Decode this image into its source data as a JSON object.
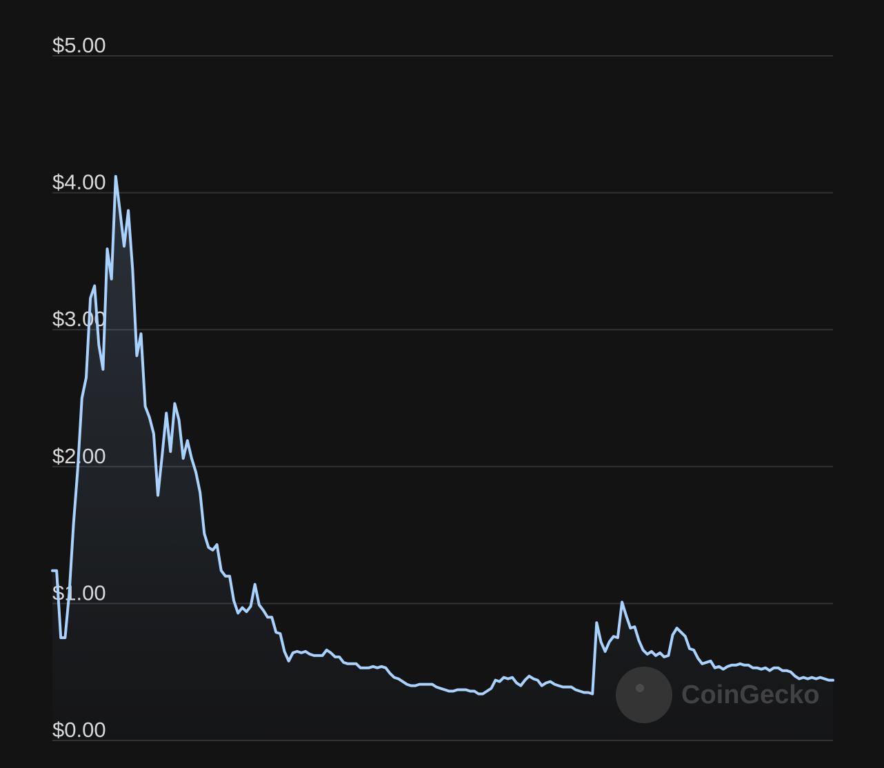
{
  "chart_data": {
    "type": "line",
    "values": [
      1.24,
      1.24,
      0.75,
      0.75,
      1.08,
      1.58,
      1.98,
      2.5,
      2.65,
      3.23,
      3.32,
      2.89,
      2.71,
      3.59,
      3.37,
      4.12,
      3.87,
      3.61,
      3.87,
      3.44,
      2.81,
      2.97,
      2.44,
      2.36,
      2.24,
      1.79,
      2.08,
      2.39,
      2.11,
      2.46,
      2.34,
      2.06,
      2.19,
      2.06,
      1.96,
      1.81,
      1.51,
      1.41,
      1.39,
      1.43,
      1.24,
      1.2,
      1.2,
      1.02,
      0.93,
      0.97,
      0.94,
      0.98,
      1.14,
      0.99,
      0.95,
      0.9,
      0.9,
      0.79,
      0.78,
      0.65,
      0.58,
      0.64,
      0.65,
      0.64,
      0.65,
      0.63,
      0.62,
      0.62,
      0.62,
      0.66,
      0.64,
      0.61,
      0.61,
      0.57,
      0.56,
      0.56,
      0.56,
      0.53,
      0.53,
      0.53,
      0.54,
      0.53,
      0.54,
      0.53,
      0.49,
      0.46,
      0.45,
      0.43,
      0.41,
      0.4,
      0.4,
      0.41,
      0.41,
      0.41,
      0.41,
      0.39,
      0.38,
      0.37,
      0.36,
      0.36,
      0.37,
      0.37,
      0.37,
      0.36,
      0.36,
      0.34,
      0.34,
      0.36,
      0.38,
      0.44,
      0.43,
      0.46,
      0.45,
      0.46,
      0.42,
      0.4,
      0.44,
      0.47,
      0.45,
      0.44,
      0.4,
      0.42,
      0.43,
      0.41,
      0.4,
      0.39,
      0.39,
      0.39,
      0.37,
      0.36,
      0.35,
      0.35,
      0.34,
      0.86,
      0.72,
      0.65,
      0.72,
      0.76,
      0.75,
      1.01,
      0.91,
      0.82,
      0.83,
      0.73,
      0.66,
      0.63,
      0.65,
      0.62,
      0.64,
      0.61,
      0.62,
      0.77,
      0.82,
      0.79,
      0.76,
      0.67,
      0.66,
      0.6,
      0.56,
      0.57,
      0.58,
      0.53,
      0.54,
      0.52,
      0.54,
      0.55,
      0.55,
      0.56,
      0.55,
      0.55,
      0.53,
      0.53,
      0.52,
      0.53,
      0.51,
      0.53,
      0.53,
      0.51,
      0.51,
      0.5,
      0.47,
      0.45,
      0.46,
      0.45,
      0.46,
      0.45,
      0.46,
      0.45,
      0.44,
      0.44
    ],
    "color": "#a9d2ff",
    "ylim": [
      0,
      5
    ],
    "yticks": [
      {
        "value": 0,
        "label": "$0.00"
      },
      {
        "value": 1,
        "label": "$1.00"
      },
      {
        "value": 2,
        "label": "$2.00"
      },
      {
        "value": 3,
        "label": "$3.00"
      },
      {
        "value": 4,
        "label": "$4.00"
      },
      {
        "value": 5,
        "label": "$5.00"
      }
    ],
    "grid": true,
    "watermark": "CoinGecko"
  }
}
